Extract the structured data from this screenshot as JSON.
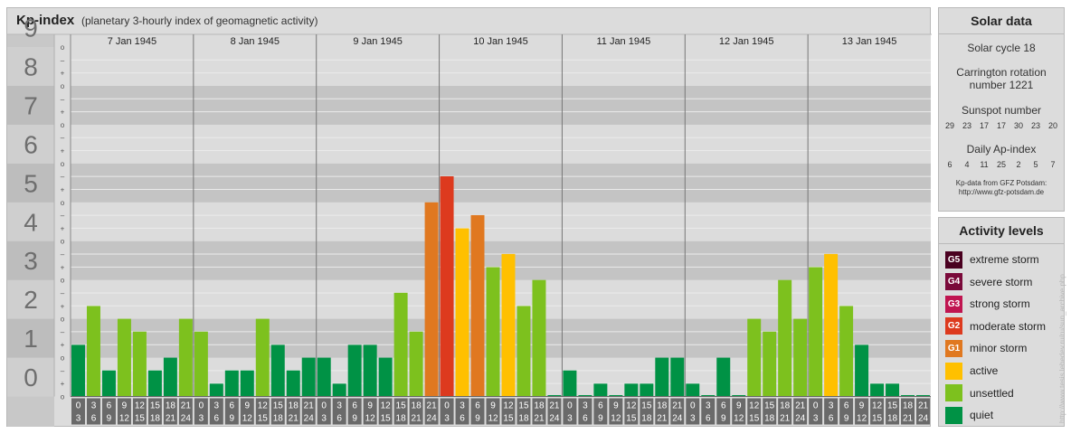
{
  "chart_data": {
    "type": "bar",
    "title": "Kp-index",
    "subtitle": "(planetary 3-hourly index of geomagnetic activity)",
    "ylim": [
      0,
      9
    ],
    "y_ticks": [
      "0",
      "1",
      "2",
      "3",
      "4",
      "5",
      "6",
      "7",
      "8",
      "9"
    ],
    "minor_tick_labels": [
      "o",
      "+",
      "–"
    ],
    "days": [
      "7 Jan 1945",
      "8 Jan 1945",
      "9 Jan 1945",
      "10 Jan 1945",
      "11 Jan 1945",
      "12 Jan 1945",
      "13 Jan 1945"
    ],
    "interval_labels": [
      [
        "0",
        "3"
      ],
      [
        "3",
        "6"
      ],
      [
        "6",
        "9"
      ],
      [
        "9",
        "12"
      ],
      [
        "12",
        "15"
      ],
      [
        "15",
        "18"
      ],
      [
        "18",
        "21"
      ],
      [
        "21",
        "24"
      ]
    ],
    "values": [
      [
        1.33,
        2.33,
        0.67,
        2.0,
        1.67,
        0.67,
        1.0,
        2.0
      ],
      [
        1.67,
        0.33,
        0.67,
        0.67,
        2.0,
        1.33,
        0.67,
        1.0
      ],
      [
        1.0,
        0.33,
        1.33,
        1.33,
        1.0,
        2.67,
        1.67,
        5.0
      ],
      [
        5.67,
        4.33,
        4.67,
        3.33,
        3.67,
        2.33,
        3.0,
        0.0
      ],
      [
        0.67,
        0.0,
        0.33,
        0.0,
        0.33,
        0.33,
        1.0,
        1.0
      ],
      [
        0.33,
        0.0,
        1.0,
        0.0,
        2.0,
        1.67,
        3.0,
        2.0
      ],
      [
        3.33,
        3.67,
        2.33,
        1.33,
        0.33,
        0.33,
        0.0,
        0.0
      ]
    ]
  },
  "colors": {
    "quiet": "#009245",
    "unsettled": "#7dc11e",
    "active": "#ffc000",
    "minor": "#e07820",
    "moderate": "#dd3a1e",
    "strong": "#c01550",
    "severe": "#7a0a3a",
    "extreme": "#4a0020"
  },
  "solar": {
    "header": "Solar data",
    "cycle": "Solar cycle 18",
    "rotation_line1": "Carrington rotation",
    "rotation_line2": "number 1221",
    "sunspot_title": "Sunspot number",
    "sunspot_values": [
      "29",
      "23",
      "17",
      "17",
      "30",
      "23",
      "20"
    ],
    "ap_title": "Daily Ap-index",
    "ap_values": [
      "6",
      "4",
      "11",
      "25",
      "2",
      "5",
      "7"
    ],
    "credit_line1": "Kp-data from GFZ Potsdam:",
    "credit_line2": "http://www.gfz-potsdam.de"
  },
  "activity": {
    "header": "Activity levels",
    "levels": [
      {
        "code": "G5",
        "label": "extreme storm",
        "color": "#4a0020"
      },
      {
        "code": "G4",
        "label": "severe storm",
        "color": "#7a0a3a"
      },
      {
        "code": "G3",
        "label": "strong storm",
        "color": "#c01550"
      },
      {
        "code": "G2",
        "label": "moderate storm",
        "color": "#dd3a1e"
      },
      {
        "code": "G1",
        "label": "minor storm",
        "color": "#e07820"
      },
      {
        "code": "",
        "label": "active",
        "color": "#ffc000"
      },
      {
        "code": "",
        "label": "unsettled",
        "color": "#7dc11e"
      },
      {
        "code": "",
        "label": "quiet",
        "color": "#009245"
      }
    ]
  },
  "watermark": "http://www.tesis.lebedev.ru/ru/sun_archive.php"
}
